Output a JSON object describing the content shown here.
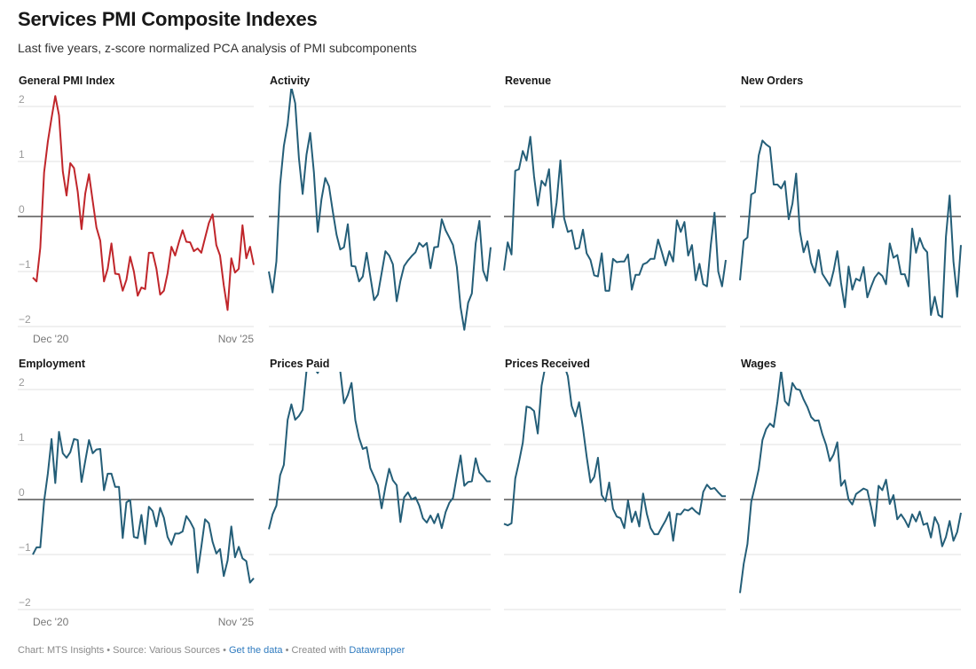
{
  "header": {
    "title": "Services PMI Composite Indexes",
    "subtitle": "Last five years, z-score normalized PCA analysis of PMI subcomponents"
  },
  "footer": {
    "chart_credit": "Chart: MTS Insights",
    "separator": " • ",
    "source": "Source: Various Sources",
    "get_data_link": "Get the data",
    "created_with": "Created with ",
    "datawrapper_link": "Datawrapper"
  },
  "colors": {
    "highlight_line": "#c0262b",
    "default_line": "#245e78",
    "zero_line": "#000000",
    "grid": "#e2e2e2",
    "tick_text": "#9a9a9a"
  },
  "chart_data": {
    "type": "line",
    "title": "Services PMI Composite Indexes",
    "subtitle": "Last five years, z-score normalized PCA analysis of PMI subcomponents",
    "x_tick_labels": [
      "Dec '20",
      "Nov '25"
    ],
    "y_ticks": [
      2,
      1,
      0,
      -1,
      -2
    ],
    "y_tick_labels": [
      "2",
      "1",
      "0",
      "−1",
      "−2"
    ],
    "ylim": [
      -2.05,
      2.3
    ],
    "grid": true,
    "panels": [
      {
        "name": "General PMI Index",
        "highlight": true,
        "values": [
          -1.11,
          -1.18,
          -0.57,
          0.8,
          1.36,
          1.79,
          2.19,
          1.84,
          0.82,
          0.38,
          0.97,
          0.88,
          0.45,
          -0.23,
          0.42,
          0.77,
          0.28,
          -0.2,
          -0.44,
          -1.18,
          -0.95,
          -0.49,
          -1.04,
          -1.05,
          -1.35,
          -1.15,
          -0.73,
          -1.0,
          -1.44,
          -1.29,
          -1.32,
          -0.66,
          -0.66,
          -0.95,
          -1.42,
          -1.35,
          -1.03,
          -0.55,
          -0.71,
          -0.47,
          -0.25,
          -0.46,
          -0.47,
          -0.63,
          -0.58,
          -0.66,
          -0.39,
          -0.12,
          0.04,
          -0.52,
          -0.71,
          -1.25,
          -1.7,
          -0.76,
          -1.02,
          -0.95,
          -0.16,
          -0.76,
          -0.55,
          -0.88
        ]
      },
      {
        "name": "Activity",
        "highlight": false,
        "values": [
          -1.0,
          -1.38,
          -0.82,
          0.58,
          1.28,
          1.68,
          2.35,
          2.06,
          1.06,
          0.41,
          1.12,
          1.52,
          0.8,
          -0.28,
          0.31,
          0.7,
          0.55,
          0.1,
          -0.33,
          -0.6,
          -0.56,
          -0.14,
          -0.9,
          -0.91,
          -1.18,
          -1.09,
          -0.66,
          -1.09,
          -1.52,
          -1.42,
          -1.03,
          -0.63,
          -0.71,
          -0.87,
          -1.54,
          -1.17,
          -0.9,
          -0.8,
          -0.72,
          -0.65,
          -0.48,
          -0.55,
          -0.48,
          -0.94,
          -0.56,
          -0.55,
          -0.05,
          -0.25,
          -0.38,
          -0.52,
          -0.92,
          -1.65,
          -2.06,
          -1.57,
          -1.4,
          -0.49,
          -0.08,
          -0.98,
          -1.17,
          -0.56
        ]
      },
      {
        "name": "Revenue",
        "highlight": false,
        "values": [
          -0.98,
          -0.47,
          -0.69,
          0.83,
          0.86,
          1.19,
          1.02,
          1.45,
          0.73,
          0.2,
          0.65,
          0.56,
          0.86,
          -0.2,
          0.25,
          1.02,
          -0.03,
          -0.28,
          -0.25,
          -0.59,
          -0.57,
          -0.24,
          -0.67,
          -0.79,
          -1.07,
          -1.09,
          -0.67,
          -1.35,
          -1.35,
          -0.77,
          -0.83,
          -0.82,
          -0.82,
          -0.69,
          -1.33,
          -1.06,
          -1.06,
          -0.87,
          -0.84,
          -0.77,
          -0.77,
          -0.42,
          -0.65,
          -0.89,
          -0.63,
          -0.82,
          -0.07,
          -0.28,
          -0.1,
          -0.71,
          -0.52,
          -1.16,
          -0.86,
          -1.23,
          -1.27,
          -0.52,
          0.07,
          -1.0,
          -1.27,
          -0.79
        ]
      },
      {
        "name": "New Orders",
        "highlight": false,
        "values": [
          -1.16,
          -0.44,
          -0.38,
          0.4,
          0.44,
          1.11,
          1.38,
          1.31,
          1.26,
          0.58,
          0.58,
          0.51,
          0.64,
          -0.05,
          0.23,
          0.78,
          -0.27,
          -0.65,
          -0.45,
          -0.84,
          -1.02,
          -0.61,
          -1.04,
          -1.15,
          -1.26,
          -0.99,
          -0.63,
          -1.21,
          -1.65,
          -0.91,
          -1.33,
          -1.13,
          -1.17,
          -0.92,
          -1.47,
          -1.28,
          -1.11,
          -1.02,
          -1.08,
          -1.23,
          -0.49,
          -0.75,
          -0.7,
          -1.05,
          -1.05,
          -1.27,
          -0.22,
          -0.66,
          -0.39,
          -0.57,
          -0.65,
          -1.79,
          -1.46,
          -1.79,
          -1.83,
          -0.37,
          0.38,
          -0.82,
          -1.46,
          -0.52
        ]
      },
      {
        "name": "Employment",
        "highlight": false,
        "values": [
          -1.0,
          -0.87,
          -0.87,
          -0.03,
          0.47,
          1.1,
          0.3,
          1.23,
          0.84,
          0.76,
          0.86,
          1.1,
          1.08,
          0.32,
          0.7,
          1.08,
          0.84,
          0.91,
          0.92,
          0.17,
          0.47,
          0.47,
          0.23,
          0.23,
          -0.7,
          -0.05,
          -0.01,
          -0.68,
          -0.7,
          -0.28,
          -0.81,
          -0.13,
          -0.21,
          -0.49,
          -0.15,
          -0.33,
          -0.68,
          -0.82,
          -0.62,
          -0.62,
          -0.58,
          -0.3,
          -0.4,
          -0.53,
          -1.33,
          -0.86,
          -0.36,
          -0.43,
          -0.77,
          -0.98,
          -0.9,
          -1.39,
          -1.11,
          -0.49,
          -1.05,
          -0.86,
          -1.07,
          -1.12,
          -1.51,
          -1.43
        ]
      },
      {
        "name": "Prices Paid",
        "highlight": false,
        "values": [
          -0.54,
          -0.27,
          -0.11,
          0.44,
          0.63,
          1.45,
          1.73,
          1.45,
          1.52,
          1.63,
          2.33,
          2.46,
          2.4,
          2.3,
          2.46,
          2.55,
          2.46,
          2.4,
          2.4,
          2.33,
          1.75,
          1.9,
          2.12,
          1.44,
          1.12,
          0.92,
          0.95,
          0.57,
          0.42,
          0.26,
          -0.16,
          0.23,
          0.56,
          0.35,
          0.26,
          -0.41,
          0.04,
          0.13,
          0.0,
          0.04,
          -0.11,
          -0.34,
          -0.42,
          -0.29,
          -0.43,
          -0.26,
          -0.52,
          -0.23,
          -0.06,
          0.03,
          0.43,
          0.8,
          0.25,
          0.32,
          0.33,
          0.75,
          0.49,
          0.42,
          0.33,
          0.33
        ]
      },
      {
        "name": "Prices Received",
        "highlight": false,
        "values": [
          -0.44,
          -0.47,
          -0.43,
          0.38,
          0.68,
          1.03,
          1.69,
          1.67,
          1.61,
          1.2,
          2.07,
          2.42,
          2.45,
          2.5,
          2.4,
          2.48,
          2.45,
          2.24,
          1.7,
          1.51,
          1.77,
          1.3,
          0.78,
          0.31,
          0.41,
          0.76,
          0.08,
          -0.03,
          0.31,
          -0.17,
          -0.31,
          -0.34,
          -0.52,
          -0.02,
          -0.41,
          -0.22,
          -0.49,
          0.11,
          -0.26,
          -0.52,
          -0.63,
          -0.63,
          -0.5,
          -0.38,
          -0.23,
          -0.75,
          -0.26,
          -0.27,
          -0.18,
          -0.2,
          -0.15,
          -0.22,
          -0.27,
          0.14,
          0.27,
          0.19,
          0.21,
          0.13,
          0.06,
          0.06
        ]
      },
      {
        "name": "Wages",
        "highlight": false,
        "values": [
          -1.7,
          -1.17,
          -0.81,
          -0.04,
          0.24,
          0.55,
          1.08,
          1.28,
          1.38,
          1.32,
          1.78,
          2.34,
          1.79,
          1.71,
          2.12,
          2.01,
          1.99,
          1.82,
          1.68,
          1.5,
          1.43,
          1.44,
          1.19,
          0.99,
          0.7,
          0.82,
          1.04,
          0.25,
          0.35,
          0.0,
          -0.09,
          0.1,
          0.15,
          0.2,
          0.17,
          -0.13,
          -0.48,
          0.25,
          0.17,
          0.36,
          -0.08,
          0.08,
          -0.36,
          -0.27,
          -0.37,
          -0.5,
          -0.27,
          -0.4,
          -0.22,
          -0.46,
          -0.43,
          -0.69,
          -0.32,
          -0.46,
          -0.85,
          -0.68,
          -0.39,
          -0.75,
          -0.59,
          -0.24
        ]
      }
    ]
  }
}
